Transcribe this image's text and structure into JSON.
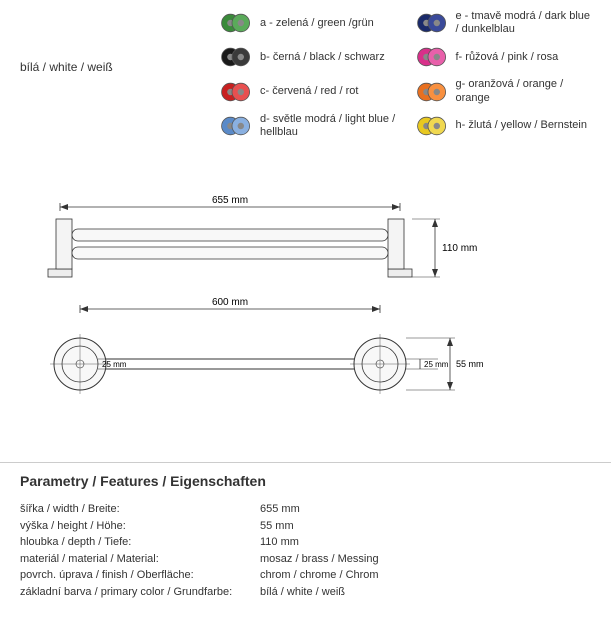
{
  "whiteLabel": "bílá / white / weiß",
  "colors": [
    {
      "key": "a",
      "hex1": "#3a8a3a",
      "hex2": "#5aaa5a",
      "label": "a - zelená / green /grün"
    },
    {
      "key": "e",
      "hex1": "#1a2a6a",
      "hex2": "#3a4a9a",
      "label": "e - tmavě modrá / dark blue / dunkelblau"
    },
    {
      "key": "b",
      "hex1": "#1a1a1a",
      "hex2": "#3a3a3a",
      "label": "b- černá / black / schwarz"
    },
    {
      "key": "f",
      "hex1": "#d8308a",
      "hex2": "#e860aa",
      "label": "f- růžová / pink / rosa"
    },
    {
      "key": "c",
      "hex1": "#c82020",
      "hex2": "#e85050",
      "label": "c- červená / red / rot"
    },
    {
      "key": "g",
      "hex1": "#e87020",
      "hex2": "#f89040",
      "label": "g- oranžová / orange / orange"
    },
    {
      "key": "d",
      "hex1": "#5a8ac8",
      "hex2": "#8ab0e0",
      "label": "d- světle modrá / light blue / hellblau"
    },
    {
      "key": "h",
      "hex1": "#e8c820",
      "hex2": "#f0d850",
      "label": "h- žlutá / yellow / Bernstein"
    }
  ],
  "dims": {
    "w655": "655 mm",
    "w600": "600 mm",
    "h110": "110 mm",
    "h55": "55 mm",
    "h25": "25 mm"
  },
  "paramsTitle": "Parametry / Features / Eigenschaften",
  "params": [
    {
      "label": "šířka / width / Breite:",
      "value": "655 mm"
    },
    {
      "label": "výška / height / Höhe:",
      "value": "55 mm"
    },
    {
      "label": "hloubka / depth / Tiefe:",
      "value": "110 mm"
    },
    {
      "label": "materiál / material / Material:",
      "value": "mosaz / brass / Messing"
    },
    {
      "label": "povrch. úprava / finish / Oberfläche:",
      "value": "chrom / chrome / Chrom"
    },
    {
      "label": "základní barva / primary color / Grundfarbe:",
      "value": "bílá / white / weiß"
    }
  ]
}
